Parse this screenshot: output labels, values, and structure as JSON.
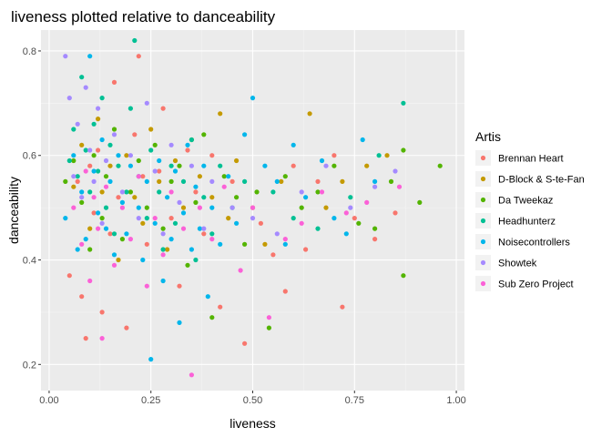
{
  "chart_data": {
    "type": "scatter",
    "title": "liveness plotted relative to danceability",
    "xlabel": "liveness",
    "ylabel": "danceability",
    "xlim": [
      -0.02,
      1.02
    ],
    "ylim": [
      0.15,
      0.84
    ],
    "x_ticks": [
      0.0,
      0.25,
      0.5,
      0.75,
      1.0
    ],
    "x_tick_labels": [
      "0.00",
      "0.25",
      "0.50",
      "0.75",
      "1.00"
    ],
    "y_ticks": [
      0.2,
      0.4,
      0.6,
      0.8
    ],
    "y_tick_labels": [
      "0.2",
      "0.4",
      "0.6",
      "0.8"
    ],
    "grid": true,
    "legend": {
      "title": "Artis",
      "position": "right"
    },
    "series": [
      {
        "name": "Brennan Heart",
        "color": "#F8766D",
        "points": [
          [
            0.05,
            0.37
          ],
          [
            0.07,
            0.55
          ],
          [
            0.08,
            0.33
          ],
          [
            0.09,
            0.25
          ],
          [
            0.1,
            0.58
          ],
          [
            0.11,
            0.49
          ],
          [
            0.12,
            0.61
          ],
          [
            0.13,
            0.3
          ],
          [
            0.15,
            0.45
          ],
          [
            0.16,
            0.74
          ],
          [
            0.17,
            0.52
          ],
          [
            0.19,
            0.27
          ],
          [
            0.21,
            0.64
          ],
          [
            0.22,
            0.79
          ],
          [
            0.23,
            0.56
          ],
          [
            0.24,
            0.43
          ],
          [
            0.27,
            0.57
          ],
          [
            0.28,
            0.69
          ],
          [
            0.3,
            0.48
          ],
          [
            0.32,
            0.35
          ],
          [
            0.34,
            0.61
          ],
          [
            0.36,
            0.53
          ],
          [
            0.38,
            0.45
          ],
          [
            0.4,
            0.6
          ],
          [
            0.42,
            0.31
          ],
          [
            0.45,
            0.55
          ],
          [
            0.48,
            0.24
          ],
          [
            0.52,
            0.47
          ],
          [
            0.55,
            0.41
          ],
          [
            0.58,
            0.34
          ],
          [
            0.6,
            0.58
          ],
          [
            0.63,
            0.42
          ],
          [
            0.66,
            0.55
          ],
          [
            0.7,
            0.6
          ],
          [
            0.72,
            0.31
          ],
          [
            0.75,
            0.48
          ],
          [
            0.8,
            0.44
          ],
          [
            0.85,
            0.49
          ]
        ]
      },
      {
        "name": "D-Block & S-te-Fan",
        "color": "#C49A00",
        "points": [
          [
            0.06,
            0.54
          ],
          [
            0.08,
            0.62
          ],
          [
            0.1,
            0.46
          ],
          [
            0.12,
            0.67
          ],
          [
            0.13,
            0.53
          ],
          [
            0.15,
            0.58
          ],
          [
            0.17,
            0.4
          ],
          [
            0.19,
            0.6
          ],
          [
            0.21,
            0.52
          ],
          [
            0.23,
            0.47
          ],
          [
            0.25,
            0.65
          ],
          [
            0.27,
            0.55
          ],
          [
            0.29,
            0.42
          ],
          [
            0.31,
            0.59
          ],
          [
            0.33,
            0.5
          ],
          [
            0.35,
            0.63
          ],
          [
            0.37,
            0.56
          ],
          [
            0.4,
            0.52
          ],
          [
            0.42,
            0.68
          ],
          [
            0.44,
            0.48
          ],
          [
            0.46,
            0.59
          ],
          [
            0.5,
            0.5
          ],
          [
            0.53,
            0.43
          ],
          [
            0.57,
            0.55
          ],
          [
            0.64,
            0.68
          ],
          [
            0.68,
            0.5
          ],
          [
            0.72,
            0.55
          ],
          [
            0.78,
            0.58
          ],
          [
            0.83,
            0.6
          ]
        ]
      },
      {
        "name": "Da Tweekaz",
        "color": "#53B400",
        "points": [
          [
            0.04,
            0.55
          ],
          [
            0.06,
            0.59
          ],
          [
            0.08,
            0.51
          ],
          [
            0.1,
            0.42
          ],
          [
            0.11,
            0.6
          ],
          [
            0.13,
            0.48
          ],
          [
            0.14,
            0.56
          ],
          [
            0.16,
            0.65
          ],
          [
            0.18,
            0.44
          ],
          [
            0.2,
            0.53
          ],
          [
            0.22,
            0.59
          ],
          [
            0.24,
            0.5
          ],
          [
            0.26,
            0.62
          ],
          [
            0.28,
            0.46
          ],
          [
            0.3,
            0.55
          ],
          [
            0.32,
            0.58
          ],
          [
            0.34,
            0.39
          ],
          [
            0.36,
            0.51
          ],
          [
            0.38,
            0.64
          ],
          [
            0.4,
            0.29
          ],
          [
            0.43,
            0.56
          ],
          [
            0.46,
            0.52
          ],
          [
            0.48,
            0.43
          ],
          [
            0.51,
            0.53
          ],
          [
            0.54,
            0.27
          ],
          [
            0.58,
            0.56
          ],
          [
            0.62,
            0.5
          ],
          [
            0.66,
            0.53
          ],
          [
            0.7,
            0.58
          ],
          [
            0.76,
            0.47
          ],
          [
            0.8,
            0.46
          ],
          [
            0.84,
            0.55
          ],
          [
            0.87,
            0.61
          ],
          [
            0.87,
            0.37
          ],
          [
            0.91,
            0.51
          ],
          [
            0.96,
            0.58
          ]
        ]
      },
      {
        "name": "Headhunterz",
        "color": "#00C094",
        "points": [
          [
            0.05,
            0.59
          ],
          [
            0.06,
            0.65
          ],
          [
            0.07,
            0.56
          ],
          [
            0.08,
            0.75
          ],
          [
            0.09,
            0.61
          ],
          [
            0.1,
            0.53
          ],
          [
            0.11,
            0.66
          ],
          [
            0.12,
            0.57
          ],
          [
            0.13,
            0.71
          ],
          [
            0.14,
            0.5
          ],
          [
            0.15,
            0.62
          ],
          [
            0.16,
            0.45
          ],
          [
            0.17,
            0.58
          ],
          [
            0.19,
            0.53
          ],
          [
            0.2,
            0.69
          ],
          [
            0.21,
            0.82
          ],
          [
            0.22,
            0.56
          ],
          [
            0.24,
            0.48
          ],
          [
            0.25,
            0.61
          ],
          [
            0.27,
            0.53
          ],
          [
            0.28,
            0.42
          ],
          [
            0.3,
            0.58
          ],
          [
            0.31,
            0.47
          ],
          [
            0.33,
            0.55
          ],
          [
            0.35,
            0.63
          ],
          [
            0.36,
            0.4
          ],
          [
            0.38,
            0.52
          ],
          [
            0.4,
            0.45
          ],
          [
            0.42,
            0.58
          ],
          [
            0.45,
            0.5
          ],
          [
            0.48,
            0.55
          ],
          [
            0.55,
            0.53
          ],
          [
            0.6,
            0.48
          ],
          [
            0.66,
            0.46
          ],
          [
            0.74,
            0.52
          ],
          [
            0.81,
            0.6
          ],
          [
            0.87,
            0.7
          ]
        ]
      },
      {
        "name": "Noisecontrollers",
        "color": "#00B6EB",
        "points": [
          [
            0.04,
            0.48
          ],
          [
            0.06,
            0.6
          ],
          [
            0.07,
            0.42
          ],
          [
            0.08,
            0.53
          ],
          [
            0.09,
            0.44
          ],
          [
            0.1,
            0.79
          ],
          [
            0.11,
            0.57
          ],
          [
            0.12,
            0.49
          ],
          [
            0.13,
            0.63
          ],
          [
            0.14,
            0.46
          ],
          [
            0.15,
            0.55
          ],
          [
            0.16,
            0.41
          ],
          [
            0.17,
            0.6
          ],
          [
            0.18,
            0.51
          ],
          [
            0.19,
            0.45
          ],
          [
            0.2,
            0.58
          ],
          [
            0.22,
            0.5
          ],
          [
            0.23,
            0.4
          ],
          [
            0.24,
            0.55
          ],
          [
            0.25,
            0.21
          ],
          [
            0.26,
            0.47
          ],
          [
            0.27,
            0.59
          ],
          [
            0.28,
            0.36
          ],
          [
            0.29,
            0.52
          ],
          [
            0.3,
            0.44
          ],
          [
            0.31,
            0.57
          ],
          [
            0.32,
            0.28
          ],
          [
            0.33,
            0.49
          ],
          [
            0.34,
            0.62
          ],
          [
            0.35,
            0.42
          ],
          [
            0.36,
            0.54
          ],
          [
            0.37,
            0.46
          ],
          [
            0.38,
            0.58
          ],
          [
            0.39,
            0.33
          ],
          [
            0.4,
            0.5
          ],
          [
            0.42,
            0.43
          ],
          [
            0.44,
            0.56
          ],
          [
            0.46,
            0.47
          ],
          [
            0.48,
            0.64
          ],
          [
            0.5,
            0.71
          ],
          [
            0.53,
            0.58
          ],
          [
            0.56,
            0.55
          ],
          [
            0.58,
            0.43
          ],
          [
            0.6,
            0.62
          ],
          [
            0.63,
            0.52
          ],
          [
            0.67,
            0.59
          ],
          [
            0.7,
            0.48
          ],
          [
            0.73,
            0.45
          ],
          [
            0.77,
            0.63
          ],
          [
            0.8,
            0.55
          ]
        ]
      },
      {
        "name": "Showtek",
        "color": "#A58AFF",
        "points": [
          [
            0.04,
            0.79
          ],
          [
            0.05,
            0.71
          ],
          [
            0.06,
            0.56
          ],
          [
            0.07,
            0.66
          ],
          [
            0.08,
            0.52
          ],
          [
            0.09,
            0.73
          ],
          [
            0.1,
            0.61
          ],
          [
            0.11,
            0.55
          ],
          [
            0.12,
            0.69
          ],
          [
            0.13,
            0.47
          ],
          [
            0.14,
            0.59
          ],
          [
            0.16,
            0.64
          ],
          [
            0.18,
            0.53
          ],
          [
            0.2,
            0.6
          ],
          [
            0.22,
            0.48
          ],
          [
            0.24,
            0.7
          ],
          [
            0.26,
            0.57
          ],
          [
            0.28,
            0.45
          ],
          [
            0.3,
            0.62
          ],
          [
            0.32,
            0.51
          ],
          [
            0.35,
            0.58
          ],
          [
            0.38,
            0.46
          ],
          [
            0.4,
            0.55
          ],
          [
            0.45,
            0.5
          ],
          [
            0.5,
            0.48
          ],
          [
            0.56,
            0.45
          ],
          [
            0.62,
            0.53
          ],
          [
            0.68,
            0.58
          ],
          [
            0.74,
            0.5
          ],
          [
            0.8,
            0.54
          ],
          [
            0.85,
            0.57
          ]
        ]
      },
      {
        "name": "Sub Zero Project",
        "color": "#FB61D7",
        "points": [
          [
            0.06,
            0.5
          ],
          [
            0.08,
            0.43
          ],
          [
            0.09,
            0.57
          ],
          [
            0.1,
            0.36
          ],
          [
            0.11,
            0.52
          ],
          [
            0.12,
            0.46
          ],
          [
            0.13,
            0.25
          ],
          [
            0.14,
            0.54
          ],
          [
            0.16,
            0.39
          ],
          [
            0.18,
            0.5
          ],
          [
            0.2,
            0.44
          ],
          [
            0.22,
            0.56
          ],
          [
            0.24,
            0.35
          ],
          [
            0.26,
            0.48
          ],
          [
            0.28,
            0.41
          ],
          [
            0.3,
            0.53
          ],
          [
            0.33,
            0.46
          ],
          [
            0.35,
            0.18
          ],
          [
            0.37,
            0.5
          ],
          [
            0.4,
            0.44
          ],
          [
            0.43,
            0.54
          ],
          [
            0.47,
            0.38
          ],
          [
            0.5,
            0.5
          ],
          [
            0.54,
            0.29
          ],
          [
            0.58,
            0.44
          ],
          [
            0.62,
            0.47
          ],
          [
            0.67,
            0.53
          ],
          [
            0.73,
            0.49
          ],
          [
            0.78,
            0.51
          ],
          [
            0.86,
            0.54
          ]
        ]
      }
    ]
  }
}
